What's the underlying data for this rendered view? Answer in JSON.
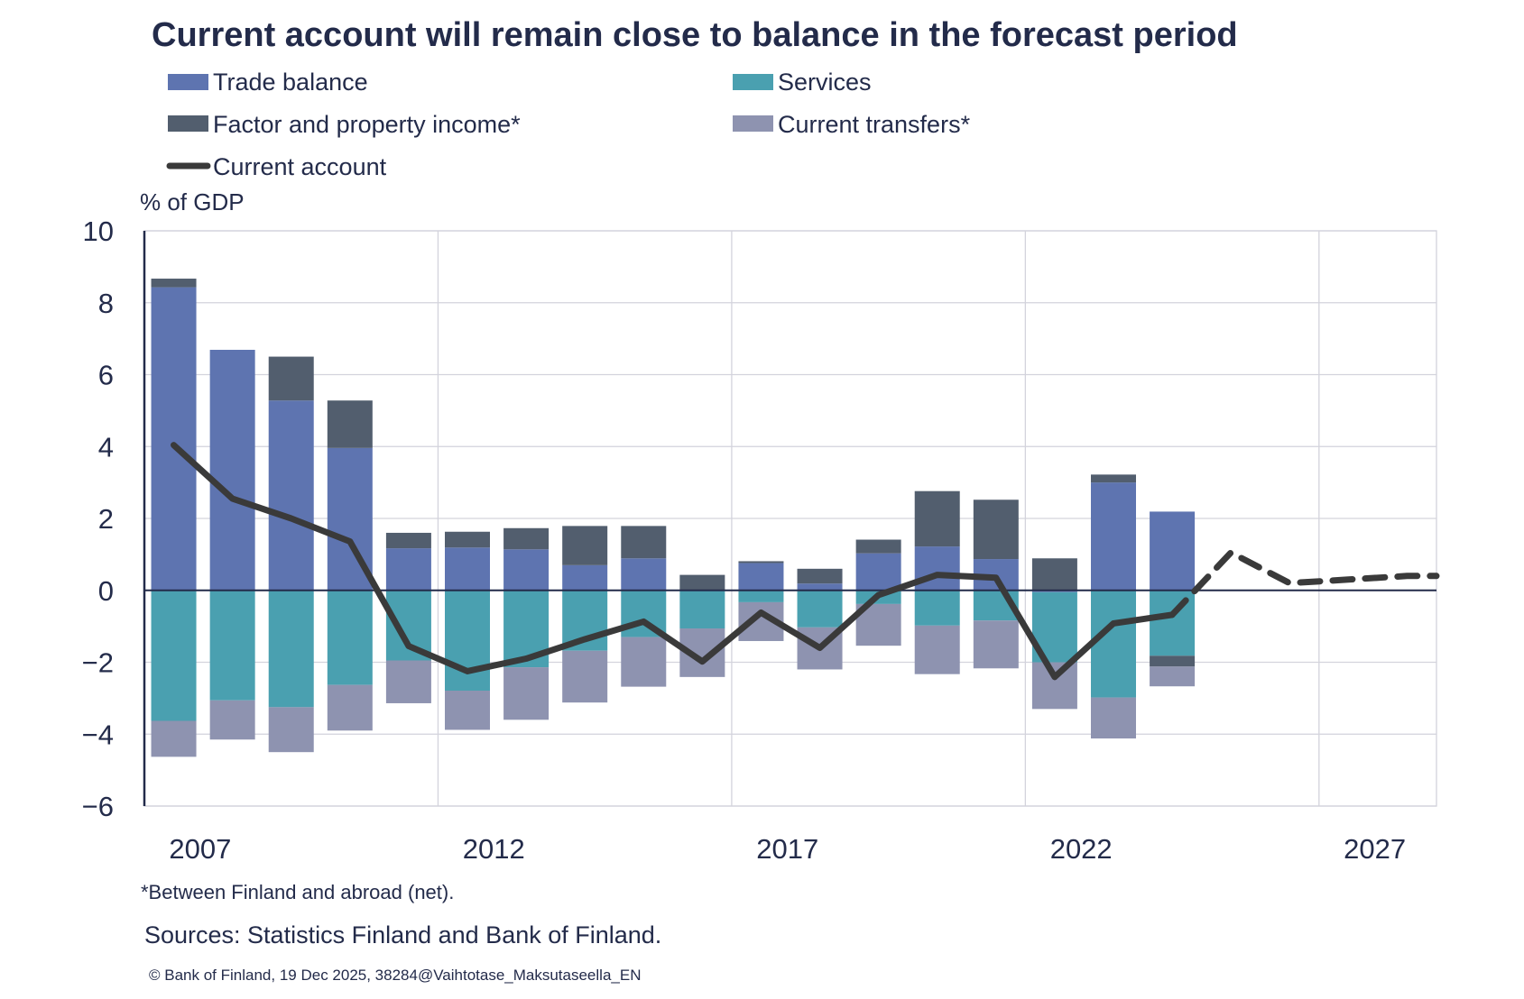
{
  "chart_data": {
    "type": "bar",
    "stacked": true,
    "title": "Current account will remain close to balance in the forecast period",
    "ylabel": "% of GDP",
    "ylim": [
      -6,
      10
    ],
    "yticks": [
      10,
      8,
      6,
      4,
      2,
      0,
      -2,
      -4,
      -6
    ],
    "ytick_labels": [
      "10",
      "8",
      "6",
      "4",
      "2",
      "0",
      "−2",
      "−4",
      "−6"
    ],
    "xlim": [
      2006.5,
      2028.5
    ],
    "xticks": [
      2007,
      2012,
      2017,
      2022,
      2027
    ],
    "xtick_labels": [
      "2007",
      "2012",
      "2017",
      "2022",
      "2027"
    ],
    "grid": true,
    "legend_position": "top",
    "categories": [
      2007,
      2008,
      2009,
      2010,
      2011,
      2012,
      2013,
      2014,
      2015,
      2016,
      2017,
      2018,
      2019,
      2020,
      2021,
      2022,
      2023,
      2024
    ],
    "series": [
      {
        "name": "Trade balance",
        "color": "#5e74b0",
        "kind": "bar",
        "values": [
          8.43,
          6.69,
          5.28,
          3.96,
          1.17,
          1.19,
          1.14,
          0.7,
          0.89,
          0.0,
          0.76,
          0.19,
          1.03,
          1.22,
          0.87,
          -0.05,
          3.0,
          2.19
        ]
      },
      {
        "name": "Services",
        "color": "#4aa0b0",
        "kind": "bar",
        "values": [
          -3.63,
          -3.06,
          -3.25,
          -2.63,
          -1.95,
          -2.79,
          -2.14,
          -1.68,
          -1.3,
          -1.06,
          -0.33,
          -1.03,
          -0.38,
          -0.98,
          -0.84,
          -1.95,
          -2.98,
          -1.82
        ]
      },
      {
        "name": "Factor and property income*",
        "color": "#525e6e",
        "kind": "bar",
        "values": [
          0.24,
          0.0,
          1.22,
          1.32,
          0.43,
          0.44,
          0.59,
          1.09,
          0.9,
          0.43,
          0.05,
          0.41,
          0.38,
          1.54,
          1.65,
          0.89,
          0.22,
          -0.3
        ]
      },
      {
        "name": "Current transfers*",
        "color": "#8e93b0",
        "kind": "bar",
        "values": [
          -1.0,
          -1.09,
          -1.25,
          -1.27,
          -1.19,
          -1.09,
          -1.46,
          -1.44,
          -1.38,
          -1.35,
          -1.08,
          -1.17,
          -1.16,
          -1.35,
          -1.33,
          -1.3,
          -1.14,
          -0.55
        ]
      },
      {
        "name": "Current account",
        "color": "#3a3a3a",
        "kind": "line",
        "x": [
          2007,
          2008,
          2009,
          2010,
          2011,
          2012,
          2013,
          2014,
          2015,
          2016,
          2017,
          2018,
          2019,
          2020,
          2021,
          2022,
          2023,
          2024
        ],
        "values": [
          4.04,
          2.55,
          2.0,
          1.36,
          -1.55,
          -2.25,
          -1.9,
          -1.36,
          -0.87,
          -1.98,
          -0.62,
          -1.6,
          -0.13,
          0.43,
          0.35,
          -2.41,
          -0.92,
          -0.68
        ],
        "forecast_x": [
          2024,
          2025,
          2026,
          2027,
          2028,
          2028.5
        ],
        "forecast_values": [
          -0.68,
          1.05,
          0.2,
          0.3,
          0.4,
          0.4
        ],
        "forecast_style": "dashed"
      }
    ]
  },
  "legend": [
    {
      "label": "Trade balance"
    },
    {
      "label": "Services"
    },
    {
      "label": "Factor and property income*"
    },
    {
      "label": "Current transfers*"
    },
    {
      "label": "Current account"
    }
  ],
  "footnote": "*Between Finland and abroad (net).",
  "sources": "Sources: Statistics Finland and Bank of Finland.",
  "copyright": "© Bank of Finland, 19 Dec  2025, 38284@Vaihtotase_Maksutaseella_EN"
}
